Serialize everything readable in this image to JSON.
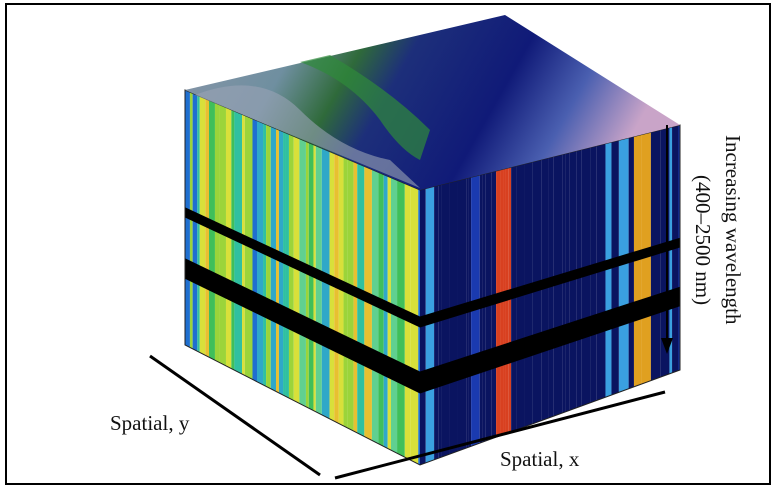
{
  "labels": {
    "spatial_y": "Spatial, y",
    "spatial_x": "Spatial, x",
    "wavelength": "Increasing wavelength",
    "range": "(400–2500 nm)"
  }
}
